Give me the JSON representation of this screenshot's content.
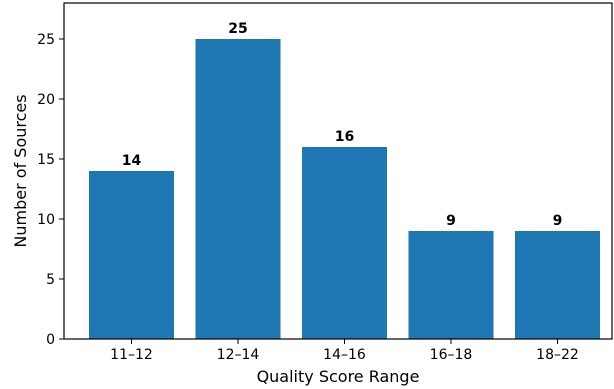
{
  "chart_data": {
    "type": "bar",
    "categories": [
      "11–12",
      "12–14",
      "14–16",
      "16–18",
      "18–22"
    ],
    "values": [
      14,
      25,
      16,
      9,
      9
    ],
    "data_labels": [
      "14",
      "25",
      "16",
      "9",
      "9"
    ],
    "title": "",
    "xlabel": "Quality Score Range",
    "ylabel": "Number of Sources",
    "ylim": [
      0,
      28
    ],
    "yticks": [
      0,
      5,
      10,
      15,
      20,
      25
    ],
    "ytick_labels": [
      "0",
      "5",
      "10",
      "15",
      "20",
      "25"
    ],
    "grid": false,
    "legend": "none",
    "bar_color": "#1f77b4"
  }
}
